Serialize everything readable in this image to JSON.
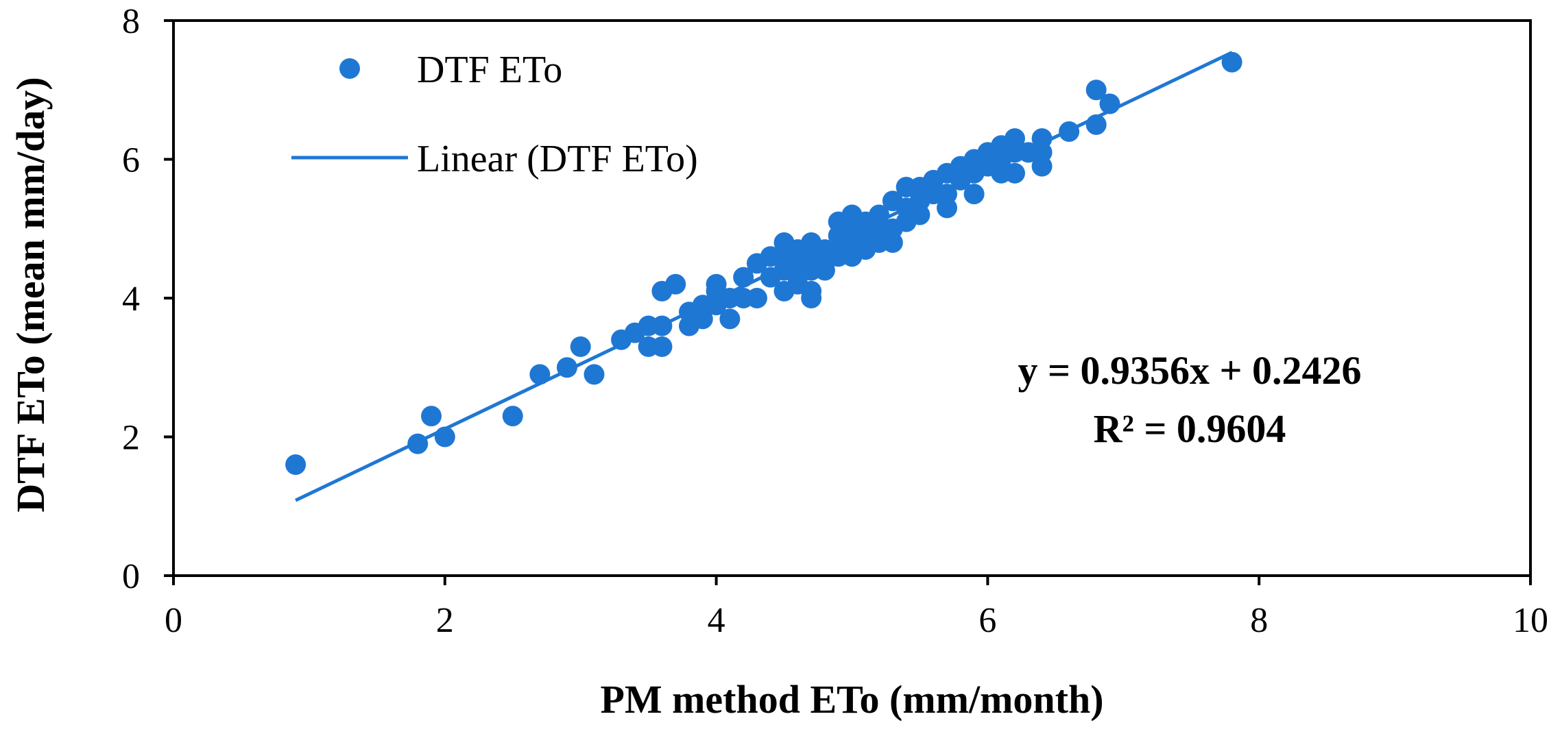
{
  "chart_data": {
    "type": "scatter",
    "title": "",
    "xlabel": "PM method ETo (mm/month)",
    "ylabel": "DTF ETo (mean mm/day)",
    "xlim": [
      0,
      10
    ],
    "ylim": [
      0,
      8
    ],
    "xticks": [
      0,
      2,
      4,
      6,
      8,
      10
    ],
    "yticks": [
      0,
      2,
      4,
      6,
      8
    ],
    "xtick_labels": [
      "0",
      "2",
      "4",
      "6",
      "8",
      "10"
    ],
    "ytick_labels": [
      "0",
      "2",
      "4",
      "6",
      "8"
    ],
    "grid": false,
    "legend_position": "top-left",
    "colors": {
      "marker": "#1f77d4",
      "trendline": "#1f77d4",
      "axis": "#000000"
    },
    "series": [
      {
        "name": "DTF ETo",
        "kind": "scatter",
        "points": [
          [
            0.9,
            1.6
          ],
          [
            1.8,
            1.9
          ],
          [
            1.9,
            2.3
          ],
          [
            2.0,
            2.0
          ],
          [
            2.5,
            2.3
          ],
          [
            2.7,
            2.9
          ],
          [
            2.9,
            3.0
          ],
          [
            3.0,
            3.3
          ],
          [
            3.1,
            2.9
          ],
          [
            3.3,
            3.4
          ],
          [
            3.4,
            3.5
          ],
          [
            3.5,
            3.6
          ],
          [
            3.5,
            3.3
          ],
          [
            3.6,
            3.6
          ],
          [
            3.6,
            3.3
          ],
          [
            3.6,
            4.1
          ],
          [
            3.7,
            4.2
          ],
          [
            3.8,
            3.6
          ],
          [
            3.8,
            3.8
          ],
          [
            3.9,
            3.7
          ],
          [
            3.9,
            3.9
          ],
          [
            4.0,
            3.9
          ],
          [
            4.0,
            4.2
          ],
          [
            4.0,
            4.1
          ],
          [
            4.1,
            3.7
          ],
          [
            4.1,
            4.0
          ],
          [
            4.2,
            4.0
          ],
          [
            4.2,
            4.3
          ],
          [
            4.3,
            4.5
          ],
          [
            4.3,
            4.0
          ],
          [
            4.4,
            4.3
          ],
          [
            4.4,
            4.6
          ],
          [
            4.5,
            4.1
          ],
          [
            4.5,
            4.4
          ],
          [
            4.5,
            4.8
          ],
          [
            4.5,
            4.6
          ],
          [
            4.6,
            4.3
          ],
          [
            4.6,
            4.5
          ],
          [
            4.6,
            4.7
          ],
          [
            4.6,
            4.2
          ],
          [
            4.7,
            4.0
          ],
          [
            4.7,
            4.4
          ],
          [
            4.7,
            4.8
          ],
          [
            4.7,
            4.6
          ],
          [
            4.7,
            4.1
          ],
          [
            4.8,
            4.5
          ],
          [
            4.8,
            4.7
          ],
          [
            4.8,
            4.4
          ],
          [
            4.9,
            4.6
          ],
          [
            4.9,
            4.9
          ],
          [
            4.9,
            5.1
          ],
          [
            4.9,
            4.7
          ],
          [
            5.0,
            4.7
          ],
          [
            5.0,
            5.0
          ],
          [
            5.0,
            5.2
          ],
          [
            5.0,
            4.8
          ],
          [
            5.0,
            4.6
          ],
          [
            5.1,
            4.9
          ],
          [
            5.1,
            5.1
          ],
          [
            5.1,
            4.7
          ],
          [
            5.2,
            5.0
          ],
          [
            5.2,
            5.2
          ],
          [
            5.2,
            4.8
          ],
          [
            5.3,
            5.0
          ],
          [
            5.3,
            5.4
          ],
          [
            5.3,
            4.8
          ],
          [
            5.4,
            5.3
          ],
          [
            5.4,
            5.6
          ],
          [
            5.4,
            5.1
          ],
          [
            5.5,
            5.4
          ],
          [
            5.5,
            5.6
          ],
          [
            5.5,
            5.2
          ],
          [
            5.6,
            5.7
          ],
          [
            5.6,
            5.5
          ],
          [
            5.7,
            5.8
          ],
          [
            5.7,
            5.5
          ],
          [
            5.7,
            5.3
          ],
          [
            5.8,
            5.9
          ],
          [
            5.8,
            5.7
          ],
          [
            5.9,
            6.0
          ],
          [
            5.9,
            5.8
          ],
          [
            5.9,
            5.5
          ],
          [
            6.0,
            6.1
          ],
          [
            6.0,
            5.9
          ],
          [
            6.1,
            6.2
          ],
          [
            6.1,
            6.0
          ],
          [
            6.1,
            5.8
          ],
          [
            6.2,
            6.3
          ],
          [
            6.2,
            6.1
          ],
          [
            6.2,
            5.8
          ],
          [
            6.3,
            6.1
          ],
          [
            6.4,
            6.3
          ],
          [
            6.4,
            6.1
          ],
          [
            6.4,
            5.9
          ],
          [
            6.6,
            6.4
          ],
          [
            6.8,
            6.5
          ],
          [
            6.8,
            7.0
          ],
          [
            6.9,
            6.8
          ],
          [
            7.8,
            7.4
          ]
        ]
      },
      {
        "name": "Linear (DTF ETo)",
        "kind": "trendline",
        "slope": 0.9356,
        "intercept": 0.2426,
        "x_range": [
          0.9,
          7.8
        ]
      }
    ],
    "annotations": [
      "y = 0.9356x + 0.2426",
      "R² = 0.9604"
    ]
  }
}
